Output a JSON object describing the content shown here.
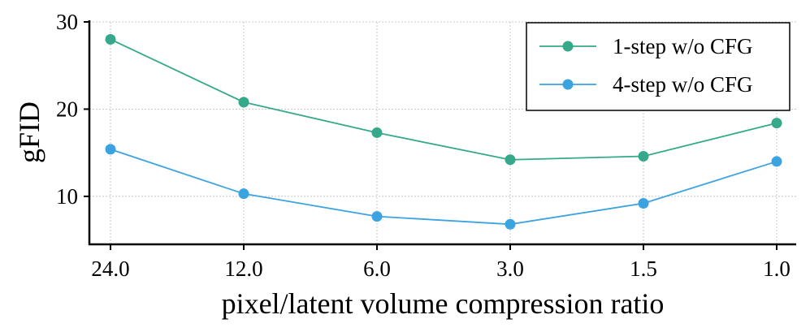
{
  "chart_data": {
    "type": "line",
    "title": "",
    "xlabel": "pixel/latent volume compression ratio",
    "ylabel": "gFID",
    "categories": [
      "24.0",
      "12.0",
      "6.0",
      "3.0",
      "1.5",
      "1.0"
    ],
    "ylim": [
      4.5,
      30
    ],
    "yticks": [
      10,
      20,
      30
    ],
    "grid": true,
    "legend_position": "top-right",
    "series": [
      {
        "name": "1-step w/o CFG",
        "color": "#35a98a",
        "values": [
          28.0,
          20.8,
          17.3,
          14.2,
          14.6,
          18.4
        ]
      },
      {
        "name": "4-step w/o CFG",
        "color": "#3ba3e0",
        "values": [
          15.4,
          10.3,
          7.7,
          6.8,
          9.2,
          14.0
        ]
      }
    ]
  }
}
